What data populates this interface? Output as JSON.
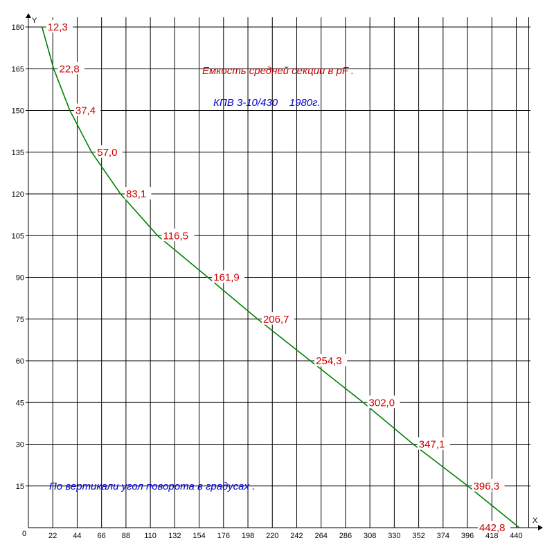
{
  "chart_data": {
    "type": "line",
    "title": "Емкость средней секции в pF .",
    "subtitle": "КПВ 3-10/430    1980г.",
    "note": "По вертикали угол поворота в градусах .",
    "xlabel": "X",
    "ylabel": "Y",
    "origin_label": "0",
    "xlim": [
      0,
      440
    ],
    "ylim": [
      0,
      180
    ],
    "x_ticks": [
      22,
      44,
      66,
      88,
      110,
      132,
      154,
      176,
      198,
      220,
      242,
      264,
      286,
      308,
      330,
      352,
      374,
      396,
      418,
      440
    ],
    "y_ticks": [
      15,
      30,
      45,
      60,
      75,
      90,
      105,
      120,
      135,
      150,
      165,
      180
    ],
    "grid": true,
    "series": [
      {
        "color": "#008000",
        "x": [
          12.3,
          22.8,
          37.4,
          57.0,
          83.1,
          116.5,
          161.9,
          206.7,
          254.3,
          302.0,
          347.1,
          396.3,
          442.8
        ],
        "y": [
          180,
          165,
          150,
          135,
          120,
          105,
          90,
          75,
          60,
          45,
          30,
          15,
          0
        ]
      }
    ],
    "point_labels": [
      "12,3",
      "22,8",
      "37,4",
      "57,0",
      "83,1",
      "116,5",
      "161,9",
      "206,7",
      "254,3",
      "302,0",
      "347,1",
      "396,3",
      "442,8"
    ],
    "label_color": "#cc0000",
    "title_color": "#cc0000",
    "subtitle_color": "#0000cc",
    "note_color": "#0000cc"
  }
}
